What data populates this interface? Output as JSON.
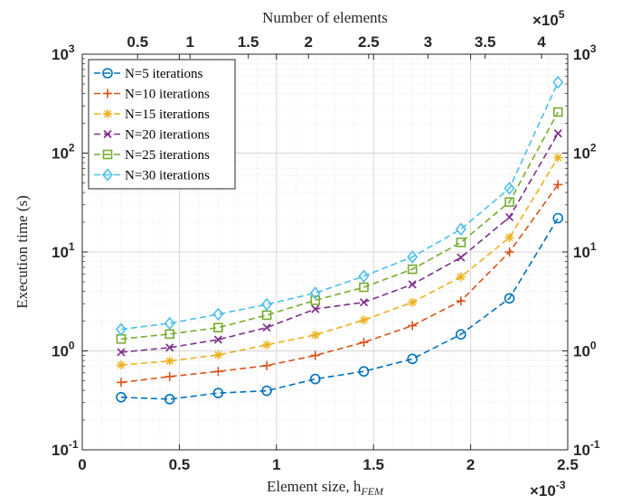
{
  "chart_data": {
    "type": "line",
    "title": "",
    "xlabel": "Element size, h",
    "xlabel_sub": "FEM",
    "ylabel": "Execution time (s)",
    "top_xlabel": "Number of elements",
    "x_multiplier_base": "×10",
    "x_multiplier_exp": "-3",
    "top_multiplier_base": "×10",
    "top_multiplier_exp": "5",
    "xlim": [
      0,
      2.5
    ],
    "ylim_log10": [
      -1,
      3
    ],
    "yscale": "log",
    "grid": true,
    "legend_position": "top-left",
    "x_ticks": [
      {
        "value": 0,
        "label": "0"
      },
      {
        "value": 0.5,
        "label": "0.5"
      },
      {
        "value": 1,
        "label": "1"
      },
      {
        "value": 1.5,
        "label": "1.5"
      },
      {
        "value": 2,
        "label": "2"
      },
      {
        "value": 2.5,
        "label": "2.5"
      }
    ],
    "top_ticks": [
      {
        "value": 0.5,
        "label": "0.5"
      },
      {
        "value": 1,
        "label": "1"
      },
      {
        "value": 1.5,
        "label": "1.5"
      },
      {
        "value": 2,
        "label": "2"
      },
      {
        "value": 2.5,
        "label": "2.5"
      },
      {
        "value": 3,
        "label": "3"
      },
      {
        "value": 3.5,
        "label": "3.5"
      },
      {
        "value": 4,
        "label": "4"
      }
    ],
    "top_ticks_x_position": [
      0.285,
      0.555,
      0.855,
      1.165,
      1.475,
      1.78,
      2.075,
      2.365
    ],
    "y_ticks": [
      {
        "exp": -1,
        "base": "10",
        "sup": "-1"
      },
      {
        "exp": 0,
        "base": "10",
        "sup": "0"
      },
      {
        "exp": 1,
        "base": "10",
        "sup": "1"
      },
      {
        "exp": 2,
        "base": "10",
        "sup": "2"
      },
      {
        "exp": 3,
        "base": "10",
        "sup": "3"
      }
    ],
    "x": [
      0.2,
      0.45,
      0.7,
      0.95,
      1.2,
      1.45,
      1.7,
      1.95,
      2.2,
      2.45
    ],
    "series": [
      {
        "name": "N=5 iterations",
        "color": "#0072BD",
        "marker": "circle",
        "values": [
          0.34,
          0.325,
          0.375,
          0.395,
          0.52,
          0.62,
          0.83,
          1.47,
          3.4,
          22
        ]
      },
      {
        "name": "N=10 iterations",
        "color": "#D95319",
        "marker": "plus",
        "values": [
          0.48,
          0.55,
          0.62,
          0.71,
          0.9,
          1.22,
          1.8,
          3.2,
          10,
          48
        ]
      },
      {
        "name": "N=15 iterations",
        "color": "#EDB120",
        "marker": "asterisk",
        "values": [
          0.72,
          0.79,
          0.91,
          1.15,
          1.45,
          2.05,
          3.1,
          5.6,
          14,
          90
        ]
      },
      {
        "name": "N=20 iterations",
        "color": "#7E2F8E",
        "marker": "x",
        "values": [
          0.97,
          1.08,
          1.3,
          1.72,
          2.65,
          3.1,
          4.7,
          8.8,
          22.5,
          158
        ]
      },
      {
        "name": "N=25 iterations",
        "color": "#77AC30",
        "marker": "square",
        "values": [
          1.32,
          1.48,
          1.72,
          2.3,
          3.25,
          4.4,
          6.7,
          12.5,
          32,
          260
        ]
      },
      {
        "name": "N=30 iterations",
        "color": "#4DBEEE",
        "marker": "diamond",
        "values": [
          1.65,
          1.9,
          2.35,
          2.95,
          3.85,
          5.7,
          8.9,
          17,
          44,
          520
        ]
      }
    ]
  }
}
